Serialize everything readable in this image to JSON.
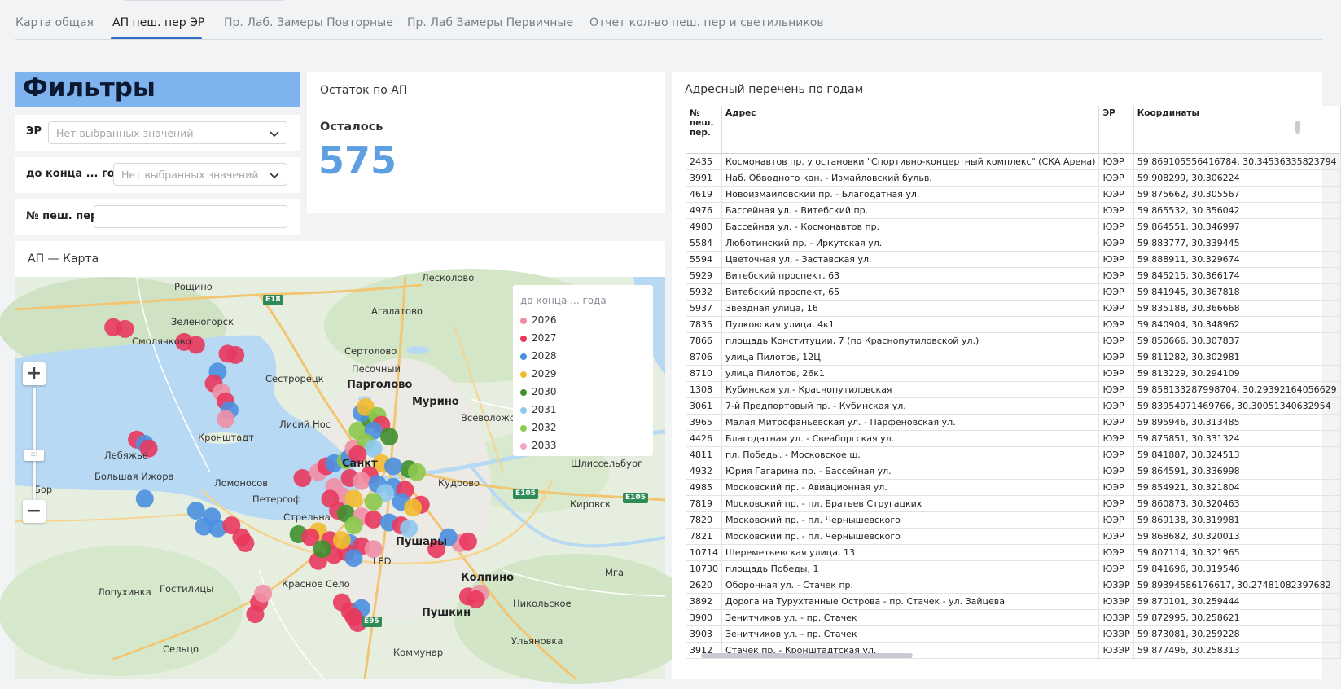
{
  "tabs": [
    {
      "label": "Карта общая"
    },
    {
      "label": "АП пеш. пер ЭР"
    },
    {
      "label": "Пр. Лаб. Замеры Повторные"
    },
    {
      "label": "Пр. Лаб Замеры Первичные"
    },
    {
      "label": "Отчет кол-во пеш. пер и светильников"
    }
  ],
  "active_tab": "АП пеш. пер ЭР",
  "filters": {
    "title": "Фильтры",
    "er_label": "ЭР",
    "er_placeholder": "Нет выбранных значений",
    "year_label": "до конца ... года",
    "year_placeholder": "Нет выбранных значений",
    "num_label": "№ пеш. пер.",
    "num_value": ""
  },
  "ostatok": {
    "title": "Остаток по АП",
    "label": "Осталось",
    "value": "575"
  },
  "map": {
    "title": "АП — Карта",
    "legend_title": "до конца ... года",
    "legend": [
      {
        "label": "2026",
        "color": "#ef8fa6"
      },
      {
        "label": "2027",
        "color": "#e8385e"
      },
      {
        "label": "2028",
        "color": "#4a8fe0"
      },
      {
        "label": "2029",
        "color": "#f2bb2d"
      },
      {
        "label": "2030",
        "color": "#3f8f2c"
      },
      {
        "label": "2031",
        "color": "#8ec9ee"
      },
      {
        "label": "2032",
        "color": "#8cc84b"
      },
      {
        "label": "2033",
        "color": "#f4a6c3"
      }
    ],
    "zoom_in": "+",
    "zoom_out": "−",
    "places": {
      "roshchino": "Рощино",
      "leskolovo": "Лесколово",
      "zelenogorsk": "Зеленогорск",
      "smolyachkovo": "Смолячково",
      "agalatovo": "Агалатово",
      "sertolovo": "Сертолово",
      "pesochny": "Песочный",
      "sestroretsk": "Сестрорецк",
      "pargolovo": "Парголово",
      "murino": "Мурино",
      "vsevolozhsk": "Всеволожск",
      "lisy_nos": "Лисий Нос",
      "kronshtadt": "Кронштадт",
      "lebyazhye": "Лебяжье",
      "spb": "Санкт",
      "shlisselburg": "Шлиссельбург",
      "bolshaya_izhora": "Большая Ижора",
      "lomonosov": "Ломоносов",
      "kudrovo": "Кудрово",
      "petergof": "Петергоф",
      "strelna": "Стрельна",
      "kirovsk": "Кировск",
      "bor": "Бор",
      "pushary": "Пушары",
      "led": "LED",
      "mga": "Мга",
      "gostilitsy": "Гостилицы",
      "krasnoe_selo": "Красное Село",
      "kolpino": "Колпино",
      "lopukhinka": "Лопухинка",
      "nikolskoye": "Никольское",
      "pushkin": "Пушкин",
      "ulyanovka": "Ульяновка",
      "selco": "Сельцо",
      "kommunar": "Коммунар"
    },
    "roads": [
      "E18",
      "E105",
      "E105",
      "E95"
    ]
  },
  "table": {
    "title": "Адресный перечень по годам",
    "columns": [
      "№ пеш. пер.",
      "Адрес",
      "ЭР",
      "Координаты"
    ],
    "rows": [
      [
        "2435",
        "Космонавтов пр. у остановки \"Спортивно-концертный комплекс\" (СКА Арена)",
        "ЮЭР",
        "59.869105556416784, 30.34536335823794"
      ],
      [
        "3991",
        "Наб. Обводного кан. - Измайловский бульв.",
        "ЮЭР",
        "59.908299, 30.306224"
      ],
      [
        "4619",
        "Новоизмайловский пр. - Благодатная ул.",
        "ЮЭР",
        "59.875662, 30.305567"
      ],
      [
        "4976",
        "Бассейная ул. - Витебский пр.",
        "ЮЭР",
        "59.865532, 30.356042"
      ],
      [
        "4980",
        "Бассейная ул. - Космонавтов пр.",
        "ЮЭР",
        "59.864551, 30.346997"
      ],
      [
        "5584",
        "Люботинский пр. - Иркутская ул.",
        "ЮЭР",
        "59.883777, 30.339445"
      ],
      [
        "5594",
        "Цветочная ул. - Заставская ул.",
        "ЮЭР",
        "59.888911, 30.329674"
      ],
      [
        "5929",
        "Витебский проспект, 63",
        "ЮЭР",
        "59.845215, 30.366174"
      ],
      [
        "5932",
        "Витебский проспект, 65",
        "ЮЭР",
        "59.841945, 30.367818"
      ],
      [
        "5937",
        "Звёздная улица, 16",
        "ЮЭР",
        "59.835188, 30.366668"
      ],
      [
        "7835",
        "Пулковская улица, 4к1",
        "ЮЭР",
        "59.840904, 30.348962"
      ],
      [
        "7866",
        "площадь Конституции, 7 (по Краснопутиловской ул.)",
        "ЮЭР",
        "59.850666, 30.307837"
      ],
      [
        "8706",
        "улица Пилотов, 12Ц",
        "ЮЭР",
        "59.811282, 30.302981"
      ],
      [
        "8710",
        "улица Пилотов, 26к1",
        "ЮЭР",
        "59.813229, 30.294109"
      ],
      [
        "1308",
        "Кубинская ул.- Краснопутиловская",
        "ЮЭР",
        "59.858133287998704, 30.29392164056629"
      ],
      [
        "3061",
        "7-й Предпортовый пр. - Кубинская ул.",
        "ЮЭР",
        "59.83954971469766, 30.30051340632954"
      ],
      [
        "3965",
        "Малая Митрофаньевская ул. - Парфёновская ул.",
        "ЮЭР",
        "59.895946, 30.313485"
      ],
      [
        "4426",
        "Благодатная ул. - Свеаборгская ул.",
        "ЮЭР",
        "59.875851, 30.331324"
      ],
      [
        "4811",
        "пл. Победы. - Московское ш.",
        "ЮЭР",
        "59.841887, 30.324513"
      ],
      [
        "4932",
        "Юрия Гагарина пр. - Бассейная ул.",
        "ЮЭР",
        "59.864591, 30.336998"
      ],
      [
        "4985",
        "Московский пр. - Авиационная ул.",
        "ЮЭР",
        "59.854921, 30.321804"
      ],
      [
        "7819",
        "Московский пр. - пл. Братьев Стругацких",
        "ЮЭР",
        "59.860873, 30.320463"
      ],
      [
        "7820",
        "Московский пр. - пл. Чернышевского",
        "ЮЭР",
        "59.869138, 30.319981"
      ],
      [
        "7821",
        "Московский пр. - пл. Чернышевского",
        "ЮЭР",
        "59.868682, 30.320013"
      ],
      [
        "10714",
        "Шереметьевская улица, 13",
        "ЮЭР",
        "59.807114, 30.321965"
      ],
      [
        "10730",
        "площадь Победы, 1",
        "ЮЭР",
        "59.841696, 30.319546"
      ],
      [
        "2620",
        "Оборонная ул. - Стачек пр.",
        "ЮЗЭР",
        "59.89394586176617, 30.27481082397682"
      ],
      [
        "3892",
        "Дорога на Турухтанные Острова - пр. Стачек - ул. Зайцева",
        "ЮЗЭР",
        "59.870101, 30.259444"
      ],
      [
        "3900",
        "Зенитчиков ул. - пр. Стачек",
        "ЮЗЭР",
        "59.872995, 30.258621"
      ],
      [
        "3903",
        "Зенитчиков ул. - пр. Стачек",
        "ЮЗЭР",
        "59.873081, 30.259228"
      ],
      [
        "3912",
        "Стачек пр. - Кронштадтская ул.",
        "ЮЗЭР",
        "59.877496, 30.258313"
      ]
    ]
  },
  "map_points": [
    {
      "year": "2027",
      "lat": 60.195,
      "lon": 29.7
    },
    {
      "year": "2027",
      "lat": 60.192,
      "lon": 29.73
    },
    {
      "year": "2027",
      "lat": 60.17,
      "lon": 29.88
    },
    {
      "year": "2027",
      "lat": 60.165,
      "lon": 29.91
    },
    {
      "year": "2027",
      "lat": 60.15,
      "lon": 29.99
    },
    {
      "year": "2027",
      "lat": 60.148,
      "lon": 30.01
    },
    {
      "year": "2028",
      "lat": 60.12,
      "lon": 29.965
    },
    {
      "year": "2027",
      "lat": 60.1,
      "lon": 29.955
    },
    {
      "year": "2026",
      "lat": 60.085,
      "lon": 29.975
    },
    {
      "year": "2027",
      "lat": 60.07,
      "lon": 29.985
    },
    {
      "year": "2028",
      "lat": 60.055,
      "lon": 29.995
    },
    {
      "year": "2026",
      "lat": 60.04,
      "lon": 29.985
    },
    {
      "year": "2027",
      "lat": 60.005,
      "lon": 29.76
    },
    {
      "year": "2028",
      "lat": 59.998,
      "lon": 29.78
    },
    {
      "year": "2027",
      "lat": 59.99,
      "lon": 29.79
    },
    {
      "year": "2028",
      "lat": 59.905,
      "lon": 29.78
    },
    {
      "year": "2028",
      "lat": 59.885,
      "lon": 29.91
    },
    {
      "year": "2028",
      "lat": 59.875,
      "lon": 29.95
    },
    {
      "year": "2028",
      "lat": 59.858,
      "lon": 29.93
    },
    {
      "year": "2028",
      "lat": 59.855,
      "lon": 29.965
    },
    {
      "year": "2027",
      "lat": 59.86,
      "lon": 30.0
    },
    {
      "year": "2027",
      "lat": 59.84,
      "lon": 30.025
    },
    {
      "year": "2027",
      "lat": 59.83,
      "lon": 30.035
    },
    {
      "year": "2027",
      "lat": 59.73,
      "lon": 30.07
    },
    {
      "year": "2026",
      "lat": 59.745,
      "lon": 30.08
    },
    {
      "year": "2027",
      "lat": 59.71,
      "lon": 30.06
    },
    {
      "year": "2027",
      "lat": 59.73,
      "lon": 30.28
    },
    {
      "year": "2027",
      "lat": 59.715,
      "lon": 30.3
    },
    {
      "year": "2028",
      "lat": 59.72,
      "lon": 30.33
    },
    {
      "year": "2027",
      "lat": 59.705,
      "lon": 30.31
    },
    {
      "year": "2027",
      "lat": 59.695,
      "lon": 30.32
    },
    {
      "year": "2027",
      "lat": 59.74,
      "lon": 30.6
    },
    {
      "year": "2026",
      "lat": 59.745,
      "lon": 30.63
    },
    {
      "year": "2027",
      "lat": 59.735,
      "lon": 30.62
    },
    {
      "year": "2027",
      "lat": 59.82,
      "lon": 30.52
    },
    {
      "year": "2026",
      "lat": 59.83,
      "lon": 30.58
    },
    {
      "year": "2027",
      "lat": 59.833,
      "lon": 30.6
    },
    {
      "year": "2028",
      "lat": 59.84,
      "lon": 30.55
    },
    {
      "year": "2027",
      "lat": 59.94,
      "lon": 30.18
    },
    {
      "year": "2026",
      "lat": 59.95,
      "lon": 30.22
    },
    {
      "year": "2027",
      "lat": 59.96,
      "lon": 30.24
    },
    {
      "year": "2028",
      "lat": 59.965,
      "lon": 30.26
    },
    {
      "year": "2032",
      "lat": 59.97,
      "lon": 30.29
    },
    {
      "year": "2028",
      "lat": 59.975,
      "lon": 30.3
    },
    {
      "year": "2026",
      "lat": 59.99,
      "lon": 30.31
    },
    {
      "year": "2032",
      "lat": 60.02,
      "lon": 30.32
    },
    {
      "year": "2030",
      "lat": 60.04,
      "lon": 30.35
    },
    {
      "year": "2028",
      "lat": 60.05,
      "lon": 30.33
    },
    {
      "year": "2029",
      "lat": 60.06,
      "lon": 30.34
    },
    {
      "year": "2032",
      "lat": 60.045,
      "lon": 30.37
    },
    {
      "year": "2027",
      "lat": 60.03,
      "lon": 30.38
    },
    {
      "year": "2028",
      "lat": 60.02,
      "lon": 30.36
    },
    {
      "year": "2030",
      "lat": 60.01,
      "lon": 30.4
    },
    {
      "year": "2032",
      "lat": 60.0,
      "lon": 30.34
    },
    {
      "year": "2031",
      "lat": 59.99,
      "lon": 30.36
    },
    {
      "year": "2027",
      "lat": 59.98,
      "lon": 30.32
    },
    {
      "year": "2029",
      "lat": 59.965,
      "lon": 30.38
    },
    {
      "year": "2030",
      "lat": 59.955,
      "lon": 30.45
    },
    {
      "year": "2032",
      "lat": 59.95,
      "lon": 30.47
    },
    {
      "year": "2027",
      "lat": 59.945,
      "lon": 30.35
    },
    {
      "year": "2027",
      "lat": 59.94,
      "lon": 30.3
    },
    {
      "year": "2026",
      "lat": 59.935,
      "lon": 30.33
    },
    {
      "year": "2028",
      "lat": 59.93,
      "lon": 30.37
    },
    {
      "year": "2028",
      "lat": 59.925,
      "lon": 30.41
    },
    {
      "year": "2027",
      "lat": 59.92,
      "lon": 30.44
    },
    {
      "year": "2031",
      "lat": 59.915,
      "lon": 30.39
    },
    {
      "year": "2026",
      "lat": 59.91,
      "lon": 30.28
    },
    {
      "year": "2029",
      "lat": 59.905,
      "lon": 30.31
    },
    {
      "year": "2032",
      "lat": 59.9,
      "lon": 30.36
    },
    {
      "year": "2028",
      "lat": 59.9,
      "lon": 30.43
    },
    {
      "year": "2027",
      "lat": 59.895,
      "lon": 30.48
    },
    {
      "year": "2029",
      "lat": 59.89,
      "lon": 30.46
    },
    {
      "year": "2027",
      "lat": 59.885,
      "lon": 30.27
    },
    {
      "year": "2030",
      "lat": 59.88,
      "lon": 30.29
    },
    {
      "year": "2026",
      "lat": 59.875,
      "lon": 30.33
    },
    {
      "year": "2027",
      "lat": 59.87,
      "lon": 30.36
    },
    {
      "year": "2028",
      "lat": 59.865,
      "lon": 30.4
    },
    {
      "year": "2027",
      "lat": 59.86,
      "lon": 30.43
    },
    {
      "year": "2031",
      "lat": 59.855,
      "lon": 30.45
    },
    {
      "year": "2029",
      "lat": 59.85,
      "lon": 30.22
    },
    {
      "year": "2030",
      "lat": 59.845,
      "lon": 30.17
    },
    {
      "year": "2027",
      "lat": 59.84,
      "lon": 30.2
    },
    {
      "year": "2027",
      "lat": 59.835,
      "lon": 30.25
    },
    {
      "year": "2028",
      "lat": 59.83,
      "lon": 30.3
    },
    {
      "year": "2027",
      "lat": 59.825,
      "lon": 30.33
    },
    {
      "year": "2026",
      "lat": 59.82,
      "lon": 30.36
    },
    {
      "year": "2027",
      "lat": 59.815,
      "lon": 30.29
    },
    {
      "year": "2027",
      "lat": 59.81,
      "lon": 30.26
    },
    {
      "year": "2028",
      "lat": 59.805,
      "lon": 30.31
    },
    {
      "year": "2027",
      "lat": 59.8,
      "lon": 30.22
    },
    {
      "year": "2030",
      "lat": 59.82,
      "lon": 30.23
    },
    {
      "year": "2029",
      "lat": 59.835,
      "lon": 30.28
    },
    {
      "year": "2032",
      "lat": 59.86,
      "lon": 30.31
    },
    {
      "year": "2026",
      "lat": 59.925,
      "lon": 30.26
    },
    {
      "year": "2027",
      "lat": 59.905,
      "lon": 30.25
    },
    {
      "year": "2028",
      "lat": 59.96,
      "lon": 30.41
    }
  ]
}
